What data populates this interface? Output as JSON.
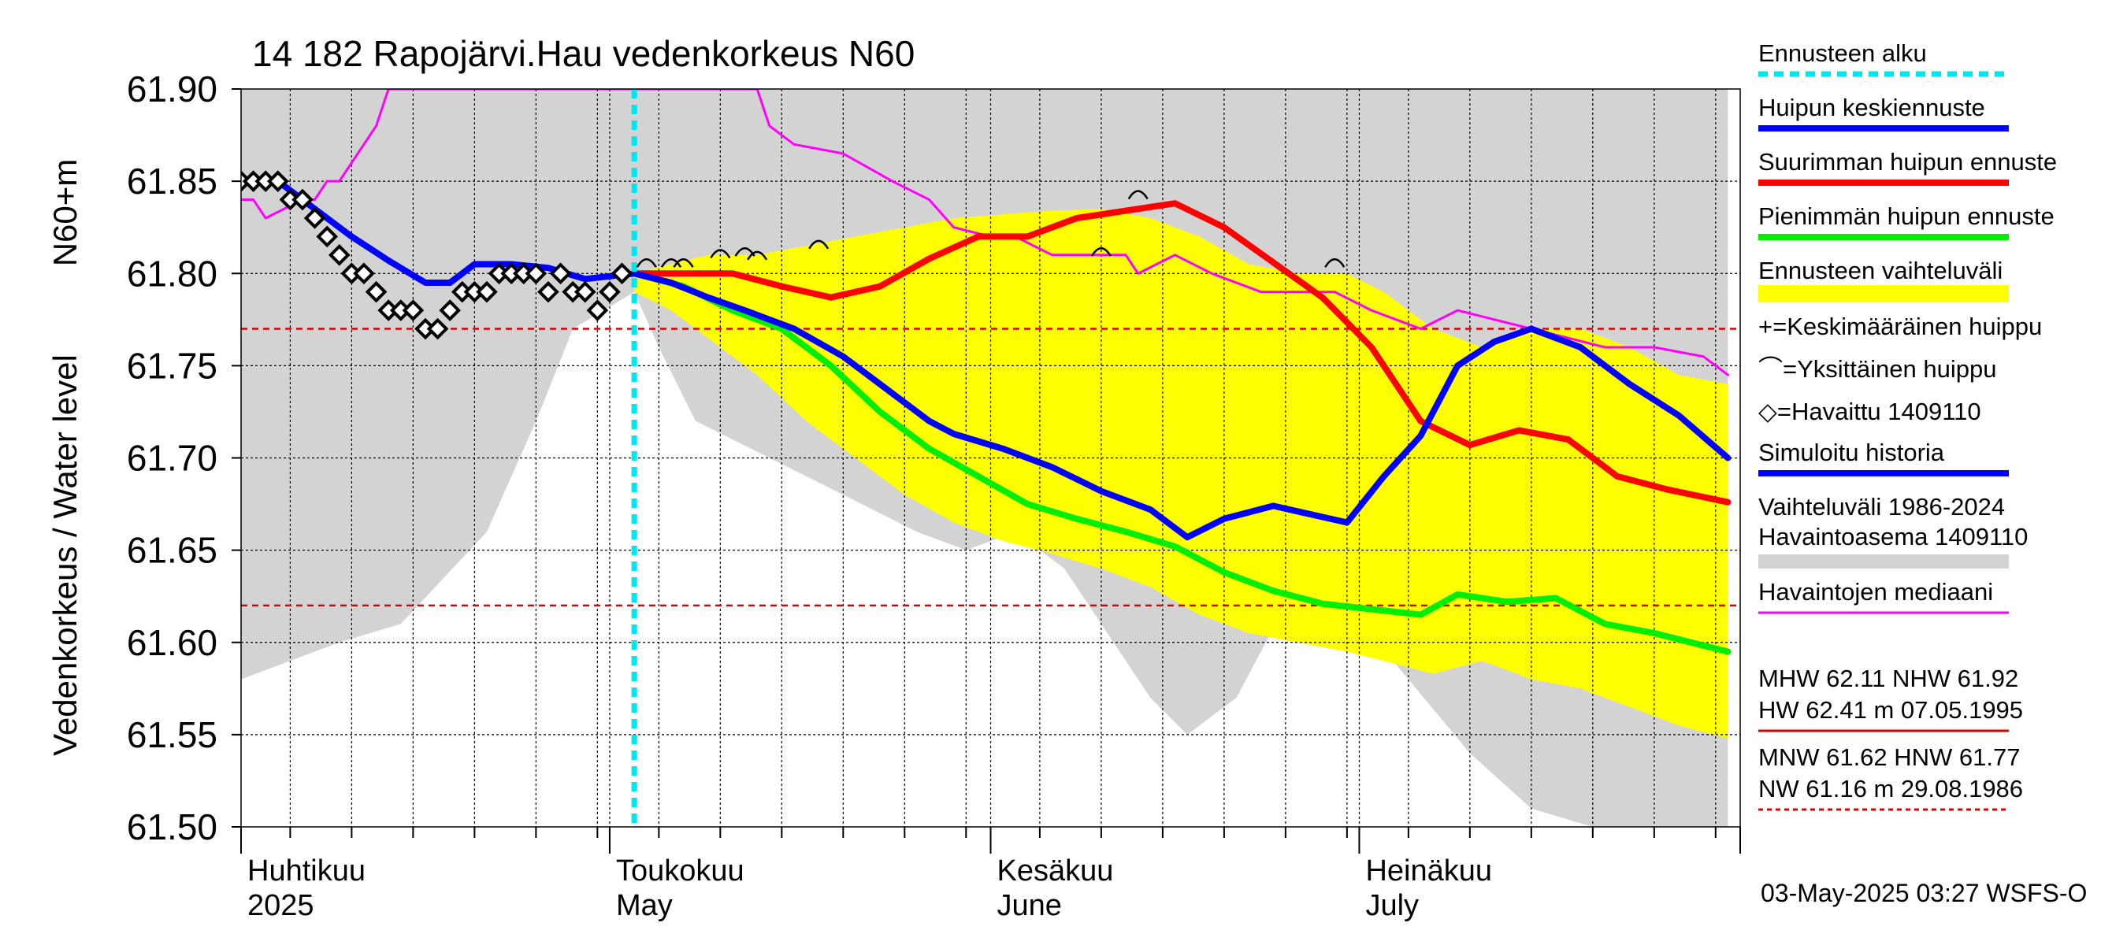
{
  "chart_data": {
    "type": "line",
    "title": "14 182 Rapojärvi.Hau vedenkorkeus N60",
    "ylabel": "Vedenkorkeus / Water level",
    "ylabel_unit": "N60+m",
    "footer": "03-May-2025 03:27 WSFS-O",
    "ylim": [
      61.5,
      61.9
    ],
    "xlim": [
      "2025-04-01",
      "2025-07-31"
    ],
    "y_ticks": [
      "61.50",
      "61.55",
      "61.60",
      "61.65",
      "61.70",
      "61.75",
      "61.80",
      "61.85",
      "61.90"
    ],
    "x_month_labels": [
      {
        "date": "2025-04-01",
        "line1": "Huhtikuu",
        "line2": "2025"
      },
      {
        "date": "2025-05-01",
        "line1": "Toukokuu",
        "line2": "May"
      },
      {
        "date": "2025-06-01",
        "line1": "Kesäkuu",
        "line2": "June"
      },
      {
        "date": "2025-07-01",
        "line1": "Heinäkuu",
        "line2": "July"
      }
    ],
    "forecast_start": "2025-05-03",
    "reference_lines": [
      {
        "name": "HNW",
        "value": 61.77,
        "color": "#e00000"
      },
      {
        "name": "MNW",
        "value": 61.62,
        "color": "#e00000"
      }
    ],
    "history_band": {
      "name": "Vaihteluväli 1986-2024 Havaintoasema 1409110",
      "color": "#d3d3d3",
      "x": [
        "2025-04-01",
        "2025-04-09",
        "2025-04-14",
        "2025-04-21",
        "2025-04-25",
        "2025-04-28",
        "2025-05-03",
        "2025-05-05",
        "2025-05-08",
        "2025-05-14",
        "2025-05-20",
        "2025-05-26",
        "2025-05-30",
        "2025-06-03",
        "2025-06-07",
        "2025-06-11",
        "2025-06-14",
        "2025-06-17",
        "2025-06-21",
        "2025-06-25",
        "2025-06-30",
        "2025-07-05",
        "2025-07-10",
        "2025-07-15",
        "2025-07-20",
        "2025-07-25",
        "2025-07-31"
      ],
      "upper": [
        61.9,
        61.9,
        61.9,
        61.9,
        61.9,
        61.9,
        61.9,
        61.9,
        61.9,
        61.9,
        61.9,
        61.9,
        61.9,
        61.9,
        61.9,
        61.9,
        61.9,
        61.9,
        61.9,
        61.9,
        61.9,
        61.9,
        61.9,
        61.9,
        61.9,
        61.9,
        61.9
      ],
      "lower": [
        61.58,
        61.6,
        61.61,
        61.66,
        61.72,
        61.77,
        61.79,
        61.76,
        61.72,
        61.7,
        61.68,
        61.66,
        61.65,
        61.66,
        61.64,
        61.6,
        61.57,
        61.55,
        61.57,
        61.62,
        61.62,
        61.58,
        61.54,
        61.51,
        61.5,
        61.5,
        61.5
      ]
    },
    "forecast_band": {
      "name": "Ennusteen vaihteluväli",
      "color": "#ffff00",
      "x": [
        "2025-05-03",
        "2025-05-06",
        "2025-05-09",
        "2025-05-13",
        "2025-05-17",
        "2025-05-21",
        "2025-05-25",
        "2025-05-29",
        "2025-06-02",
        "2025-06-06",
        "2025-06-10",
        "2025-06-14",
        "2025-06-18",
        "2025-06-22",
        "2025-06-26",
        "2025-06-30",
        "2025-07-03",
        "2025-07-07",
        "2025-07-11",
        "2025-07-15",
        "2025-07-19",
        "2025-07-23",
        "2025-07-27",
        "2025-07-31"
      ],
      "upper": [
        61.8,
        61.805,
        61.81,
        61.81,
        61.815,
        61.82,
        61.825,
        61.83,
        61.832,
        61.834,
        61.835,
        61.83,
        61.82,
        61.805,
        61.8,
        61.8,
        61.79,
        61.77,
        61.76,
        61.77,
        61.77,
        61.76,
        61.745,
        61.74
      ],
      "lower": [
        61.79,
        61.78,
        61.765,
        61.745,
        61.72,
        61.7,
        61.68,
        61.665,
        61.655,
        61.648,
        61.64,
        61.63,
        61.615,
        61.605,
        61.6,
        61.595,
        61.59,
        61.583,
        61.59,
        61.58,
        61.575,
        61.565,
        61.555,
        61.548
      ]
    },
    "series": [
      {
        "name": "Havaittu 1409110",
        "color": "#000000",
        "marker": "diamond",
        "x": [
          "2025-04-01",
          "2025-04-02",
          "2025-04-03",
          "2025-04-04",
          "2025-04-05",
          "2025-04-06",
          "2025-04-07",
          "2025-04-08",
          "2025-04-09",
          "2025-04-10",
          "2025-04-11",
          "2025-04-12",
          "2025-04-13",
          "2025-04-14",
          "2025-04-15",
          "2025-04-16",
          "2025-04-17",
          "2025-04-18",
          "2025-04-19",
          "2025-04-20",
          "2025-04-21",
          "2025-04-22",
          "2025-04-23",
          "2025-04-24",
          "2025-04-25",
          "2025-04-26",
          "2025-04-27",
          "2025-04-28",
          "2025-04-29",
          "2025-04-30",
          "2025-05-01",
          "2025-05-02"
        ],
        "values": [
          61.85,
          61.85,
          61.85,
          61.85,
          61.84,
          61.84,
          61.83,
          61.82,
          61.81,
          61.8,
          61.8,
          61.79,
          61.78,
          61.78,
          61.78,
          61.77,
          61.77,
          61.78,
          61.79,
          61.79,
          61.79,
          61.8,
          61.8,
          61.8,
          61.8,
          61.79,
          61.8,
          61.79,
          61.79,
          61.78,
          61.79,
          61.8
        ]
      },
      {
        "name": "Simuloitu historia",
        "color": "#0000ff",
        "x": [
          "2025-04-01",
          "2025-04-04",
          "2025-04-07",
          "2025-04-10",
          "2025-04-13",
          "2025-04-16",
          "2025-04-18",
          "2025-04-20",
          "2025-04-23",
          "2025-04-26",
          "2025-04-29",
          "2025-05-03"
        ],
        "values": [
          61.85,
          61.85,
          61.835,
          61.82,
          61.807,
          61.795,
          61.795,
          61.805,
          61.805,
          61.803,
          61.797,
          61.8
        ]
      },
      {
        "name": "Huipun keskiennuste",
        "color": "#0000ff",
        "x": [
          "2025-05-03",
          "2025-05-06",
          "2025-05-09",
          "2025-05-12",
          "2025-05-16",
          "2025-05-20",
          "2025-05-24",
          "2025-05-27",
          "2025-05-29",
          "2025-06-02",
          "2025-06-06",
          "2025-06-10",
          "2025-06-14",
          "2025-06-17",
          "2025-06-20",
          "2025-06-24",
          "2025-06-28",
          "2025-06-30",
          "2025-07-03",
          "2025-07-06",
          "2025-07-09",
          "2025-07-12",
          "2025-07-15",
          "2025-07-19",
          "2025-07-23",
          "2025-07-27",
          "2025-07-31"
        ],
        "values": [
          61.8,
          61.795,
          61.787,
          61.78,
          61.77,
          61.755,
          61.735,
          61.72,
          61.713,
          61.705,
          61.695,
          61.682,
          61.672,
          61.657,
          61.667,
          61.674,
          61.668,
          61.665,
          61.69,
          61.712,
          61.75,
          61.763,
          61.77,
          61.76,
          61.74,
          61.723,
          61.7
        ]
      },
      {
        "name": "Suurimman huipun ennuste",
        "color": "#ff0000",
        "x": [
          "2025-05-03",
          "2025-05-07",
          "2025-05-11",
          "2025-05-15",
          "2025-05-19",
          "2025-05-23",
          "2025-05-27",
          "2025-05-31",
          "2025-06-04",
          "2025-06-08",
          "2025-06-12",
          "2025-06-16",
          "2025-06-20",
          "2025-06-24",
          "2025-06-28",
          "2025-07-02",
          "2025-07-06",
          "2025-07-10",
          "2025-07-14",
          "2025-07-18",
          "2025-07-22",
          "2025-07-26",
          "2025-07-31"
        ],
        "values": [
          61.8,
          61.8,
          61.8,
          61.793,
          61.787,
          61.793,
          61.808,
          61.82,
          61.82,
          61.83,
          61.834,
          61.838,
          61.825,
          61.806,
          61.787,
          61.76,
          61.72,
          61.707,
          61.715,
          61.71,
          61.69,
          61.683,
          61.676
        ]
      },
      {
        "name": "Pienimmän huipun ennuste",
        "color": "#00ee00",
        "x": [
          "2025-05-03",
          "2025-05-07",
          "2025-05-11",
          "2025-05-15",
          "2025-05-19",
          "2025-05-23",
          "2025-05-27",
          "2025-05-31",
          "2025-06-04",
          "2025-06-08",
          "2025-06-12",
          "2025-06-16",
          "2025-06-20",
          "2025-06-24",
          "2025-06-28",
          "2025-07-02",
          "2025-07-06",
          "2025-07-09",
          "2025-07-13",
          "2025-07-17",
          "2025-07-21",
          "2025-07-25",
          "2025-07-31"
        ],
        "values": [
          61.8,
          61.793,
          61.78,
          61.77,
          61.75,
          61.725,
          61.705,
          61.69,
          61.675,
          61.667,
          61.66,
          61.652,
          61.638,
          61.628,
          61.621,
          61.618,
          61.615,
          61.626,
          61.622,
          61.624,
          61.61,
          61.605,
          61.595
        ]
      },
      {
        "name": "Havaintojen mediaani",
        "color": "#ff00ff",
        "x": [
          "2025-04-01",
          "2025-04-02",
          "2025-04-03",
          "2025-04-06",
          "2025-04-07",
          "2025-04-08",
          "2025-04-09",
          "2025-04-10",
          "2025-04-12",
          "2025-04-13",
          "2025-05-13",
          "2025-05-14",
          "2025-05-16",
          "2025-05-20",
          "2025-05-24",
          "2025-05-27",
          "2025-05-29",
          "2025-06-01",
          "2025-06-03",
          "2025-06-06",
          "2025-06-09",
          "2025-06-12",
          "2025-06-13",
          "2025-06-16",
          "2025-06-19",
          "2025-06-23",
          "2025-06-26",
          "2025-06-29",
          "2025-07-02",
          "2025-07-06",
          "2025-07-09",
          "2025-07-12",
          "2025-07-15",
          "2025-07-18",
          "2025-07-21",
          "2025-07-25",
          "2025-07-29",
          "2025-07-31"
        ],
        "values": [
          61.84,
          61.84,
          61.83,
          61.84,
          61.84,
          61.85,
          61.85,
          61.86,
          61.88,
          61.9,
          61.9,
          61.88,
          61.87,
          61.865,
          61.85,
          61.84,
          61.825,
          61.82,
          61.82,
          61.81,
          61.81,
          61.81,
          61.8,
          61.81,
          61.8,
          61.79,
          61.79,
          61.79,
          61.78,
          61.77,
          61.78,
          61.775,
          61.77,
          61.765,
          61.76,
          61.76,
          61.755,
          61.745
        ]
      }
    ],
    "individual_peaks": {
      "name": "Yksittäinen huippu",
      "color": "#000000",
      "x": [
        "2025-05-04",
        "2025-05-06",
        "2025-05-07",
        "2025-05-10",
        "2025-05-12",
        "2025-05-13",
        "2025-05-18",
        "2025-06-10",
        "2025-06-13",
        "2025-06-29"
      ],
      "values": [
        61.8,
        61.8,
        61.8,
        61.805,
        61.806,
        61.804,
        61.81,
        61.806,
        61.837,
        61.8
      ]
    },
    "legend": {
      "placement": "right",
      "items": [
        {
          "label": "Ennusteen alku",
          "color": "#00e5ee",
          "style": "dashed"
        },
        {
          "label": "Huipun keskiennuste",
          "color": "#0000ff",
          "style": "line"
        },
        {
          "label": "Suurimman huipun ennuste",
          "color": "#ff0000",
          "style": "line"
        },
        {
          "label": "Pienimmän huipun ennuste",
          "color": "#00ee00",
          "style": "line"
        },
        {
          "label": "Ennusteen vaihteluväli",
          "color": "#ffff00",
          "style": "band"
        },
        {
          "label": "+=Keskimääräinen huippu",
          "color": "#000000",
          "style": "text"
        },
        {
          "label": "⌒=Yksittäinen huippu",
          "color": "#000000",
          "style": "text"
        },
        {
          "label": "◇=Havaittu 1409110",
          "color": "#000000",
          "style": "text"
        },
        {
          "label": "Simuloitu historia",
          "color": "#0000ff",
          "style": "line"
        },
        {
          "label": "Vaihteluväli 1986-2024 Havaintoasema 1409110",
          "color": "#d3d3d3",
          "style": "band"
        },
        {
          "label": "Havaintojen mediaani",
          "color": "#ff00ff",
          "style": "thin"
        }
      ]
    },
    "stats": [
      {
        "text": "MHW  62.11 NHW  61.92",
        "group": 1
      },
      {
        "text": "HW  62.41 m 07.05.1995",
        "group": 1
      },
      {
        "text": "MNW  61.62 HNW  61.77",
        "group": 2
      },
      {
        "text": "NW  61.16 m 29.08.1986",
        "group": 2
      }
    ]
  }
}
